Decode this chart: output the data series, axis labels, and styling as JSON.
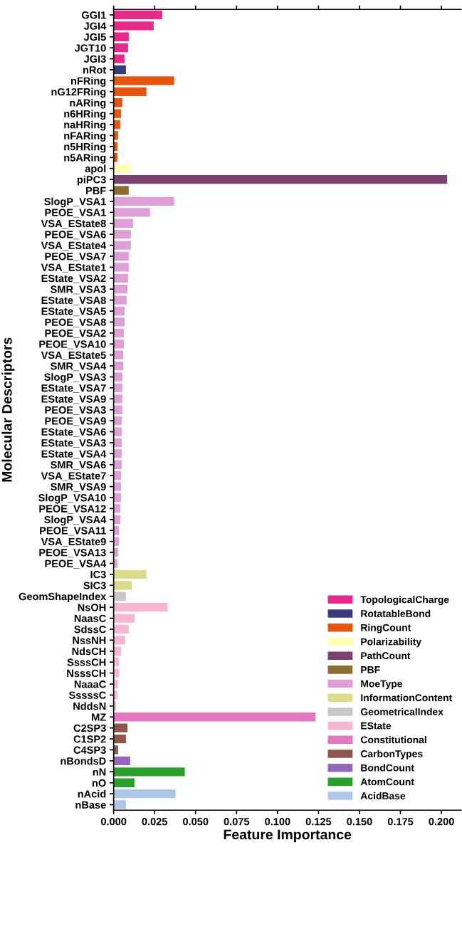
{
  "chart_data": {
    "type": "bar",
    "orientation": "horizontal",
    "xlabel": "Feature Importance",
    "ylabel": "Molecular Descriptors",
    "categories": [
      "GGI1",
      "JGI4",
      "JGI5",
      "JGT10",
      "JGI3",
      "nRot",
      "nFRing",
      "nG12FRing",
      "nARing",
      "n6HRing",
      "naHRing",
      "nFARing",
      "n5HRing",
      "n5ARing",
      "apol",
      "piPC3",
      "PBF",
      "SlogP_VSA1",
      "PEOE_VSA1",
      "VSA_EState8",
      "PEOE_VSA6",
      "VSA_EState4",
      "PEOE_VSA7",
      "VSA_EState1",
      "EState_VSA2",
      "SMR_VSA3",
      "EState_VSA8",
      "EState_VSA5",
      "PEOE_VSA8",
      "PEOE_VSA2",
      "PEOE_VSA10",
      "VSA_EState5",
      "SMR_VSA4",
      "SlogP_VSA3",
      "EState_VSA7",
      "EState_VSA9",
      "PEOE_VSA3",
      "PEOE_VSA9",
      "EState_VSA6",
      "EState_VSA3",
      "EState_VSA4",
      "SMR_VSA6",
      "VSA_EState7",
      "SMR_VSA9",
      "SlogP_VSA10",
      "PEOE_VSA12",
      "SlogP_VSA4",
      "PEOE_VSA11",
      "VSA_EState9",
      "PEOE_VSA13",
      "PEOE_VSA4",
      "IC3",
      "SIC3",
      "GeomShapeIndex",
      "NsOH",
      "NaasC",
      "SdssC",
      "NssNH",
      "NdsCH",
      "SsssCH",
      "NsssCH",
      "NaaaC",
      "SssssC",
      "NddsN",
      "MZ",
      "C2SP3",
      "C1SP2",
      "C4SP3",
      "nBondsD",
      "nN",
      "nO",
      "nAcid",
      "nBase"
    ],
    "series": [
      {
        "name": "TopologicalCharge",
        "color": "#e7298a",
        "values": [
          0.0296,
          0.0244,
          0.0092,
          0.0088,
          0.0066,
          null,
          null,
          null,
          null,
          null,
          null,
          null,
          null,
          null,
          null,
          null,
          null,
          null,
          null,
          null,
          null,
          null,
          null,
          null,
          null,
          null,
          null,
          null,
          null,
          null,
          null,
          null,
          null,
          null,
          null,
          null,
          null,
          null,
          null,
          null,
          null,
          null,
          null,
          null,
          null,
          null,
          null,
          null,
          null,
          null,
          null,
          null,
          null,
          null,
          null,
          null,
          null,
          null,
          null,
          null,
          null,
          null,
          null,
          null,
          null,
          null,
          null,
          null,
          null,
          null,
          null,
          null,
          null
        ]
      },
      {
        "name": "RotatableBond",
        "color": "#3b3b7b",
        "values": [
          null,
          null,
          null,
          null,
          null,
          0.0075,
          null,
          null,
          null,
          null,
          null,
          null,
          null,
          null,
          null,
          null,
          null,
          null,
          null,
          null,
          null,
          null,
          null,
          null,
          null,
          null,
          null,
          null,
          null,
          null,
          null,
          null,
          null,
          null,
          null,
          null,
          null,
          null,
          null,
          null,
          null,
          null,
          null,
          null,
          null,
          null,
          null,
          null,
          null,
          null,
          null,
          null,
          null,
          null,
          null,
          null,
          null,
          null,
          null,
          null,
          null,
          null,
          null,
          null,
          null,
          null,
          null,
          null,
          null,
          null,
          null,
          null,
          null
        ]
      },
      {
        "name": "RingCount",
        "color": "#e6550d",
        "values": [
          null,
          null,
          null,
          null,
          null,
          null,
          0.0369,
          0.02,
          0.0053,
          0.0045,
          0.004,
          0.0027,
          0.0023,
          0.0023,
          null,
          null,
          null,
          null,
          null,
          null,
          null,
          null,
          null,
          null,
          null,
          null,
          null,
          null,
          null,
          null,
          null,
          null,
          null,
          null,
          null,
          null,
          null,
          null,
          null,
          null,
          null,
          null,
          null,
          null,
          null,
          null,
          null,
          null,
          null,
          null,
          null,
          null,
          null,
          null,
          null,
          null,
          null,
          null,
          null,
          null,
          null,
          null,
          null,
          null,
          null,
          null,
          null,
          null,
          null,
          null,
          null,
          null,
          null
        ]
      },
      {
        "name": "Polarizability",
        "color": "#ffffb3",
        "values": [
          null,
          null,
          null,
          null,
          null,
          null,
          null,
          null,
          null,
          null,
          null,
          null,
          null,
          null,
          0.0105,
          null,
          null,
          null,
          null,
          null,
          null,
          null,
          null,
          null,
          null,
          null,
          null,
          null,
          null,
          null,
          null,
          null,
          null,
          null,
          null,
          null,
          null,
          null,
          null,
          null,
          null,
          null,
          null,
          null,
          null,
          null,
          null,
          null,
          null,
          null,
          null,
          null,
          null,
          null,
          null,
          null,
          null,
          null,
          null,
          null,
          null,
          null,
          null,
          null,
          null,
          null,
          null,
          null,
          null,
          null,
          null,
          null,
          null
        ]
      },
      {
        "name": "PathCount",
        "color": "#7b4173",
        "values": [
          null,
          null,
          null,
          null,
          null,
          null,
          null,
          null,
          null,
          null,
          null,
          null,
          null,
          null,
          null,
          0.2035,
          null,
          null,
          null,
          null,
          null,
          null,
          null,
          null,
          null,
          null,
          null,
          null,
          null,
          null,
          null,
          null,
          null,
          null,
          null,
          null,
          null,
          null,
          null,
          null,
          null,
          null,
          null,
          null,
          null,
          null,
          null,
          null,
          null,
          null,
          null,
          null,
          null,
          null,
          null,
          null,
          null,
          null,
          null,
          null,
          null,
          null,
          null,
          null,
          null,
          null,
          null,
          null,
          null,
          null,
          null,
          null,
          null
        ]
      },
      {
        "name": "PBF",
        "color": "#8c6d31",
        "values": [
          null,
          null,
          null,
          null,
          null,
          null,
          null,
          null,
          null,
          null,
          null,
          null,
          null,
          null,
          null,
          null,
          0.0092,
          null,
          null,
          null,
          null,
          null,
          null,
          null,
          null,
          null,
          null,
          null,
          null,
          null,
          null,
          null,
          null,
          null,
          null,
          null,
          null,
          null,
          null,
          null,
          null,
          null,
          null,
          null,
          null,
          null,
          null,
          null,
          null,
          null,
          null,
          null,
          null,
          null,
          null,
          null,
          null,
          null,
          null,
          null,
          null,
          null,
          null,
          null,
          null,
          null,
          null,
          null,
          null,
          null,
          null,
          null,
          null
        ]
      },
      {
        "name": "MoeType",
        "color": "#de9ed6",
        "values": [
          null,
          null,
          null,
          null,
          null,
          null,
          null,
          null,
          null,
          null,
          null,
          null,
          null,
          null,
          null,
          null,
          null,
          0.0369,
          0.0222,
          0.0118,
          0.0105,
          0.0105,
          0.0092,
          0.0092,
          0.0088,
          0.0084,
          0.0079,
          0.0066,
          0.0066,
          0.0062,
          0.0062,
          0.0058,
          0.0058,
          0.0053,
          0.0053,
          0.0053,
          0.0053,
          0.0049,
          0.0049,
          0.0049,
          0.0049,
          0.0049,
          0.0045,
          0.0045,
          0.0045,
          0.004,
          0.004,
          0.0032,
          0.0032,
          0.0027,
          0.0023,
          null,
          null,
          null,
          null,
          null,
          null,
          null,
          null,
          null,
          null,
          null,
          null,
          null,
          null,
          null,
          null,
          null,
          null,
          null,
          null,
          null,
          null
        ]
      },
      {
        "name": "InformationContent",
        "color": "#dbdb8d",
        "values": [
          null,
          null,
          null,
          null,
          null,
          null,
          null,
          null,
          null,
          null,
          null,
          null,
          null,
          null,
          null,
          null,
          null,
          null,
          null,
          null,
          null,
          null,
          null,
          null,
          null,
          null,
          null,
          null,
          null,
          null,
          null,
          null,
          null,
          null,
          null,
          null,
          null,
          null,
          null,
          null,
          null,
          null,
          null,
          null,
          null,
          null,
          null,
          null,
          null,
          null,
          null,
          0.02,
          0.011,
          null,
          null,
          null,
          null,
          null,
          null,
          null,
          null,
          null,
          null,
          null,
          null,
          null,
          null,
          null,
          null,
          null,
          null,
          null,
          null
        ]
      },
      {
        "name": "GeometricalIndex",
        "color": "#c7c7c7",
        "values": [
          null,
          null,
          null,
          null,
          null,
          null,
          null,
          null,
          null,
          null,
          null,
          null,
          null,
          null,
          null,
          null,
          null,
          null,
          null,
          null,
          null,
          null,
          null,
          null,
          null,
          null,
          null,
          null,
          null,
          null,
          null,
          null,
          null,
          null,
          null,
          null,
          null,
          null,
          null,
          null,
          null,
          null,
          null,
          null,
          null,
          null,
          null,
          null,
          null,
          null,
          null,
          null,
          null,
          0.0075,
          null,
          null,
          null,
          null,
          null,
          null,
          null,
          null,
          null,
          null,
          null,
          null,
          null,
          null,
          null,
          null,
          null,
          null,
          null
        ]
      },
      {
        "name": "EState",
        "color": "#f7b6d2",
        "values": [
          null,
          null,
          null,
          null,
          null,
          null,
          null,
          null,
          null,
          null,
          null,
          null,
          null,
          null,
          null,
          null,
          null,
          null,
          null,
          null,
          null,
          null,
          null,
          null,
          null,
          null,
          null,
          null,
          null,
          null,
          null,
          null,
          null,
          null,
          null,
          null,
          null,
          null,
          null,
          null,
          null,
          null,
          null,
          null,
          null,
          null,
          null,
          null,
          null,
          null,
          null,
          null,
          null,
          null,
          0.033,
          0.0127,
          0.0092,
          0.0071,
          0.0045,
          0.0032,
          0.0032,
          0.0027,
          0.0023,
          0.0014,
          null,
          null,
          null,
          null,
          null,
          null,
          null,
          null,
          null
        ]
      },
      {
        "name": "Constitutional",
        "color": "#e377c2",
        "values": [
          null,
          null,
          null,
          null,
          null,
          null,
          null,
          null,
          null,
          null,
          null,
          null,
          null,
          null,
          null,
          null,
          null,
          null,
          null,
          null,
          null,
          null,
          null,
          null,
          null,
          null,
          null,
          null,
          null,
          null,
          null,
          null,
          null,
          null,
          null,
          null,
          null,
          null,
          null,
          null,
          null,
          null,
          null,
          null,
          null,
          null,
          null,
          null,
          null,
          null,
          null,
          null,
          null,
          null,
          null,
          null,
          null,
          null,
          null,
          null,
          null,
          null,
          null,
          null,
          0.1231,
          null,
          null,
          null,
          null,
          null,
          null,
          null,
          null
        ]
      },
      {
        "name": "CarbonTypes",
        "color": "#8c564b",
        "values": [
          null,
          null,
          null,
          null,
          null,
          null,
          null,
          null,
          null,
          null,
          null,
          null,
          null,
          null,
          null,
          null,
          null,
          null,
          null,
          null,
          null,
          null,
          null,
          null,
          null,
          null,
          null,
          null,
          null,
          null,
          null,
          null,
          null,
          null,
          null,
          null,
          null,
          null,
          null,
          null,
          null,
          null,
          null,
          null,
          null,
          null,
          null,
          null,
          null,
          null,
          null,
          null,
          null,
          null,
          null,
          null,
          null,
          null,
          null,
          null,
          null,
          null,
          null,
          null,
          null,
          0.0084,
          0.0075,
          0.0027,
          null,
          null,
          null,
          null,
          null
        ]
      },
      {
        "name": "BondCount",
        "color": "#9467bd",
        "values": [
          null,
          null,
          null,
          null,
          null,
          null,
          null,
          null,
          null,
          null,
          null,
          null,
          null,
          null,
          null,
          null,
          null,
          null,
          null,
          null,
          null,
          null,
          null,
          null,
          null,
          null,
          null,
          null,
          null,
          null,
          null,
          null,
          null,
          null,
          null,
          null,
          null,
          null,
          null,
          null,
          null,
          null,
          null,
          null,
          null,
          null,
          null,
          null,
          null,
          null,
          null,
          null,
          null,
          null,
          null,
          null,
          null,
          null,
          null,
          null,
          null,
          null,
          null,
          null,
          null,
          null,
          null,
          null,
          0.0101,
          null,
          null,
          null,
          null
        ]
      },
      {
        "name": "AtomCount",
        "color": "#2ca02c",
        "values": [
          null,
          null,
          null,
          null,
          null,
          null,
          null,
          null,
          null,
          null,
          null,
          null,
          null,
          null,
          null,
          null,
          null,
          null,
          null,
          null,
          null,
          null,
          null,
          null,
          null,
          null,
          null,
          null,
          null,
          null,
          null,
          null,
          null,
          null,
          null,
          null,
          null,
          null,
          null,
          null,
          null,
          null,
          null,
          null,
          null,
          null,
          null,
          null,
          null,
          null,
          null,
          null,
          null,
          null,
          null,
          null,
          null,
          null,
          null,
          null,
          null,
          null,
          null,
          null,
          null,
          null,
          null,
          null,
          null,
          0.0434,
          0.0127,
          null,
          null
        ]
      },
      {
        "name": "AcidBase",
        "color": "#aec7e8",
        "values": [
          null,
          null,
          null,
          null,
          null,
          null,
          null,
          null,
          null,
          null,
          null,
          null,
          null,
          null,
          null,
          null,
          null,
          null,
          null,
          null,
          null,
          null,
          null,
          null,
          null,
          null,
          null,
          null,
          null,
          null,
          null,
          null,
          null,
          null,
          null,
          null,
          null,
          null,
          null,
          null,
          null,
          null,
          null,
          null,
          null,
          null,
          null,
          null,
          null,
          null,
          null,
          null,
          null,
          null,
          null,
          null,
          null,
          null,
          null,
          null,
          null,
          null,
          null,
          null,
          null,
          null,
          null,
          null,
          null,
          null,
          null,
          0.0378,
          0.0075
        ]
      }
    ],
    "xlim": [
      0,
      0.212
    ],
    "xticks": [
      {
        "value": 0,
        "label": "0.000"
      },
      {
        "value": 0.025,
        "label": "0.025"
      },
      {
        "value": 0.05,
        "label": "0.050"
      },
      {
        "value": 0.075,
        "label": "0.075"
      },
      {
        "value": 0.1,
        "label": "0.100"
      },
      {
        "value": 0.125,
        "label": "0.125"
      },
      {
        "value": 0.15,
        "label": "0.150"
      },
      {
        "value": 0.175,
        "label": "0.175"
      },
      {
        "value": 0.2,
        "label": "0.200"
      }
    ],
    "grid": false,
    "legend": "bottom right"
  }
}
